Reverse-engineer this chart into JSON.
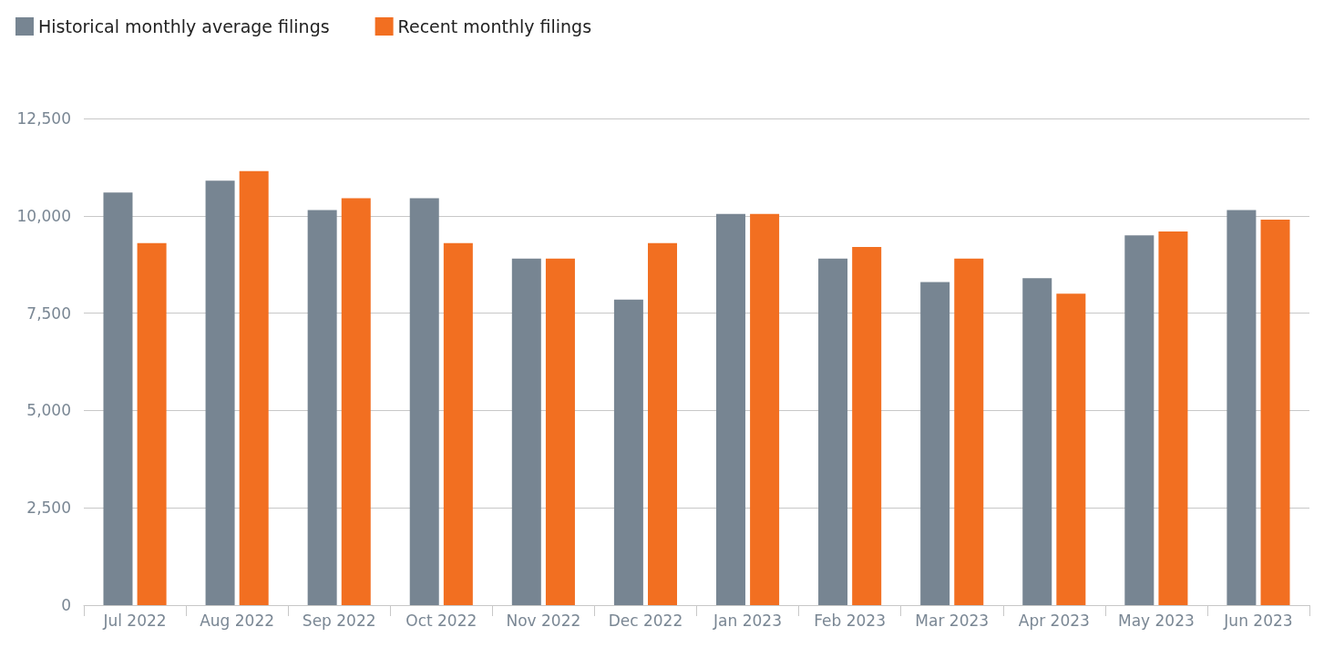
{
  "chart_data": {
    "type": "bar",
    "categories": [
      "Jul 2022",
      "Aug 2022",
      "Sep 2022",
      "Oct 2022",
      "Nov 2022",
      "Dec 2022",
      "Jan 2023",
      "Feb 2023",
      "Mar 2023",
      "Apr 2023",
      "May 2023",
      "Jun 2023"
    ],
    "series": [
      {
        "name": "Historical monthly average filings",
        "color": "#778592",
        "values": [
          10600,
          10900,
          10150,
          10450,
          8900,
          7850,
          10050,
          8900,
          8300,
          8400,
          9500,
          10150
        ]
      },
      {
        "name": "Recent monthly filings",
        "color": "#f26f21",
        "values": [
          9300,
          11150,
          10450,
          9300,
          8900,
          9300,
          10050,
          9200,
          8900,
          8000,
          9600,
          9900
        ]
      }
    ],
    "ylim": [
      0,
      12500
    ],
    "yticks": [
      0,
      {
        "value": 2500,
        "label": "2,500"
      },
      {
        "value": 5000,
        "label": "5,000"
      },
      {
        "value": 7500,
        "label": "7,500"
      },
      {
        "value": 10000,
        "label": "10,000"
      },
      {
        "value": 12500,
        "label": "12,500"
      }
    ],
    "grid": "y",
    "legend": "top left"
  }
}
